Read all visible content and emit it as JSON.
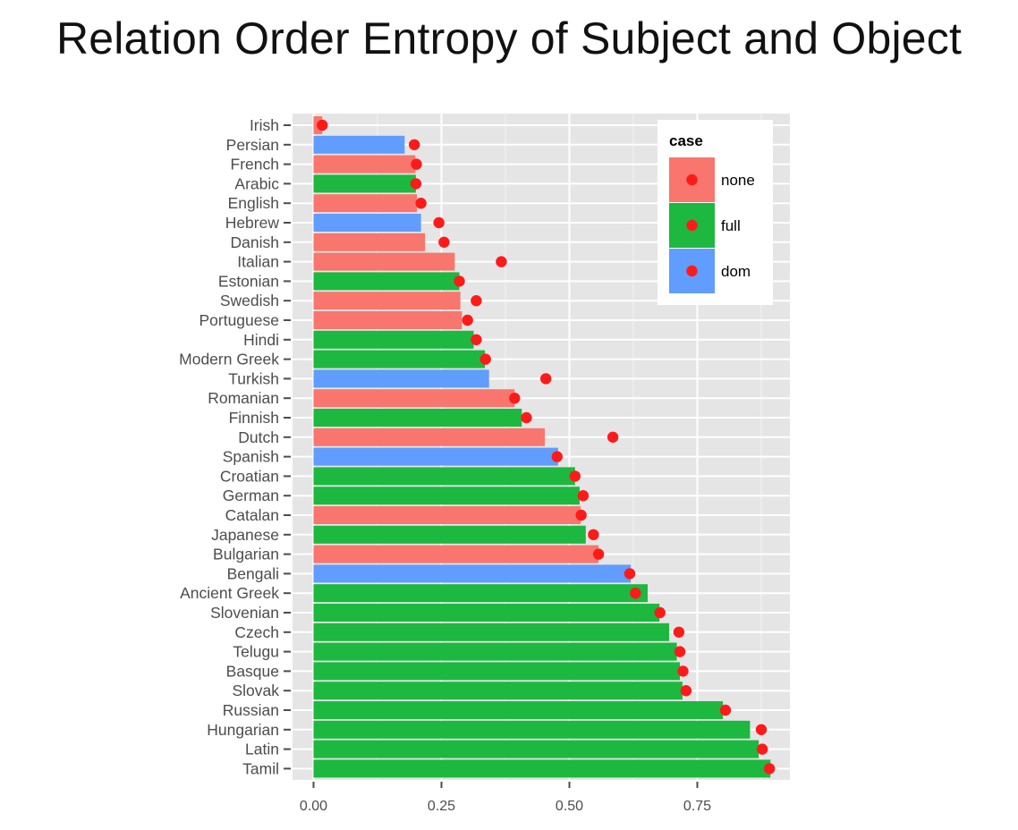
{
  "chart_data": {
    "type": "bar",
    "orientation": "horizontal",
    "title": "Relation Order Entropy of Subject and Object",
    "xlabel": "",
    "ylabel": "",
    "xlim": [
      -0.04,
      0.93
    ],
    "x_ticks": [
      0,
      0.25,
      0.5,
      0.75
    ],
    "x_tick_labels": [
      "0.00",
      "0.25",
      "0.50",
      "0.75"
    ],
    "grid": true,
    "legend": {
      "title": "case",
      "placement": "top-right",
      "entries": [
        {
          "key": "none",
          "label": "none"
        },
        {
          "key": "full",
          "label": "full"
        },
        {
          "key": "dom",
          "label": "dom"
        }
      ]
    },
    "colors": {
      "none": "#F8766D",
      "full": "#1DB83F",
      "dom": "#619CFF",
      "point": "#FF1A1A",
      "panel": "#E5E5E5",
      "grid": "#FFFFFF"
    },
    "points_layer": "relation order entropy points",
    "categories": [
      "Irish",
      "Persian",
      "French",
      "Arabic",
      "English",
      "Hebrew",
      "Danish",
      "Italian",
      "Estonian",
      "Swedish",
      "Portuguese",
      "Hindi",
      "Modern Greek",
      "Turkish",
      "Romanian",
      "Finnish",
      "Dutch",
      "Spanish",
      "Croatian",
      "German",
      "Catalan",
      "Japanese",
      "Bulgarian",
      "Bengali",
      "Ancient Greek",
      "Slovenian",
      "Czech",
      "Telugu",
      "Basque",
      "Slovak",
      "Russian",
      "Hungarian",
      "Latin",
      "Tamil"
    ],
    "case": [
      "none",
      "dom",
      "none",
      "full",
      "none",
      "dom",
      "none",
      "none",
      "full",
      "none",
      "none",
      "full",
      "full",
      "dom",
      "none",
      "full",
      "none",
      "dom",
      "full",
      "full",
      "none",
      "full",
      "none",
      "dom",
      "full",
      "full",
      "full",
      "full",
      "full",
      "full",
      "full",
      "full",
      "full",
      "full"
    ],
    "bar_values": [
      0.017,
      0.178,
      0.199,
      0.2,
      0.202,
      0.21,
      0.218,
      0.276,
      0.285,
      0.287,
      0.29,
      0.313,
      0.335,
      0.343,
      0.393,
      0.407,
      0.452,
      0.478,
      0.511,
      0.52,
      0.522,
      0.532,
      0.557,
      0.62,
      0.653,
      0.676,
      0.695,
      0.71,
      0.716,
      0.721,
      0.8,
      0.853,
      0.87,
      0.893
    ],
    "point_values": [
      0.017,
      0.197,
      0.201,
      0.2,
      0.21,
      0.245,
      0.255,
      0.367,
      0.285,
      0.318,
      0.301,
      0.318,
      0.336,
      0.454,
      0.393,
      0.416,
      0.585,
      0.476,
      0.511,
      0.527,
      0.523,
      0.547,
      0.557,
      0.618,
      0.629,
      0.677,
      0.714,
      0.716,
      0.722,
      0.728,
      0.805,
      0.875,
      0.877,
      0.891
    ]
  }
}
